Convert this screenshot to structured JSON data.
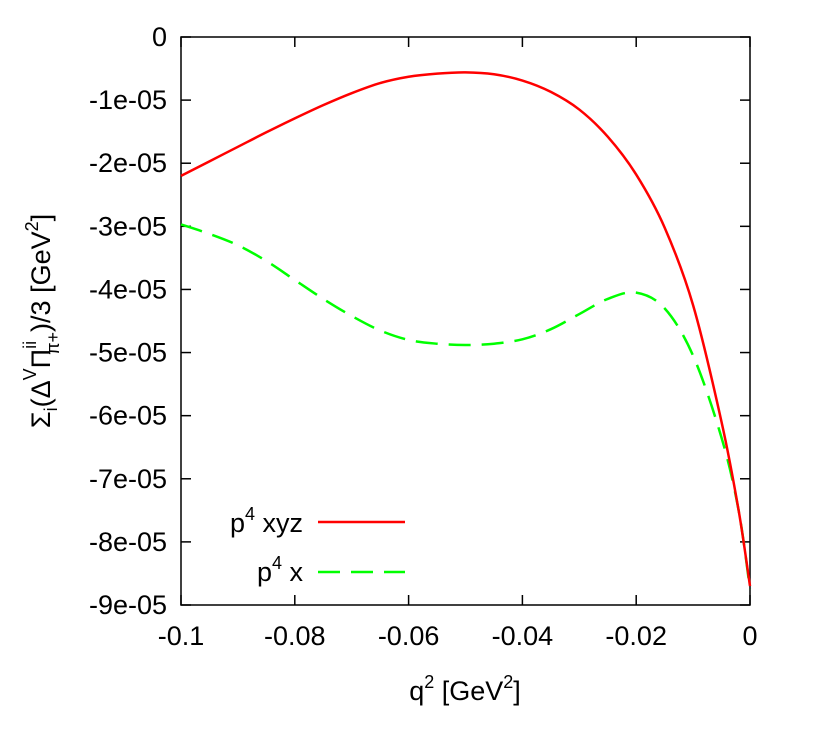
{
  "chart_data": {
    "type": "line",
    "title": "",
    "xlabel": {
      "base": "q",
      "sup": "2",
      "unit_open": " [GeV",
      "unit_sup": "2",
      "unit_close": "]"
    },
    "ylabel": {
      "sigma": "Σ",
      "sub_i": "i",
      "open": "(Δ",
      "sup_v": "V",
      "pi": "Π",
      "sup_ii": "ii",
      "sub_pi": "π+",
      "close": ")/3 [GeV",
      "unit_sup": "2",
      "bracket": "]"
    },
    "xlim": [
      -0.1,
      0
    ],
    "ylim": [
      -9e-05,
      0
    ],
    "xticks": [
      -0.1,
      -0.08,
      -0.06,
      -0.04,
      -0.02,
      0
    ],
    "xtick_labels": [
      "-0.1",
      "-0.08",
      "-0.06",
      "-0.04",
      "-0.02",
      "0"
    ],
    "yticks": [
      0,
      -1e-05,
      -2e-05,
      -3e-05,
      -4e-05,
      -5e-05,
      -6e-05,
      -7e-05,
      -8e-05,
      -9e-05
    ],
    "ytick_labels": [
      "0",
      "-1e-05",
      "-2e-05",
      "-3e-05",
      "-4e-05",
      "-5e-05",
      "-6e-05",
      "-7e-05",
      "-8e-05",
      "-9e-05"
    ],
    "grid": false,
    "legend_position": "bottom-left",
    "series": [
      {
        "name": "p4 xyz",
        "legend": {
          "base": "p",
          "sup": "4",
          "rest": " xyz"
        },
        "color": "#ff0000",
        "style": "solid",
        "x": [
          -0.1,
          -0.095,
          -0.09,
          -0.085,
          -0.08,
          -0.075,
          -0.07,
          -0.065,
          -0.06,
          -0.055,
          -0.05,
          -0.045,
          -0.04,
          -0.035,
          -0.03,
          -0.025,
          -0.02,
          -0.015,
          -0.01,
          -0.005,
          -0.002,
          0
        ],
        "y": [
          -2.2e-05,
          -1.97e-05,
          -1.74e-05,
          -1.51e-05,
          -1.29e-05,
          -1.08e-05,
          -8.9e-06,
          -7.3e-06,
          -6.3e-06,
          -5.8e-06,
          -5.6e-06,
          -5.9e-06,
          -6.9e-06,
          -8.7e-06,
          -1.15e-05,
          -1.58e-05,
          -2.18e-05,
          -3.02e-05,
          -4.25e-05,
          -6.1e-05,
          -7.5e-05,
          -8.7e-05
        ]
      },
      {
        "name": "p4 x",
        "legend": {
          "base": "p",
          "sup": "4",
          "rest": " x"
        },
        "color": "#00ff00",
        "style": "dashed",
        "x": [
          -0.1,
          -0.095,
          -0.09,
          -0.085,
          -0.08,
          -0.075,
          -0.07,
          -0.065,
          -0.06,
          -0.055,
          -0.05,
          -0.045,
          -0.04,
          -0.035,
          -0.03,
          -0.025,
          -0.02,
          -0.015,
          -0.01,
          -0.005,
          -0.002,
          0
        ],
        "y": [
          -2.97e-05,
          -3.12e-05,
          -3.3e-05,
          -3.55e-05,
          -3.85e-05,
          -4.15e-05,
          -4.42e-05,
          -4.65e-05,
          -4.8e-05,
          -4.86e-05,
          -4.88e-05,
          -4.86e-05,
          -4.79e-05,
          -4.63e-05,
          -4.39e-05,
          -4.15e-05,
          -4.05e-05,
          -4.3e-05,
          -5.05e-05,
          -6.35e-05,
          -7.5e-05,
          -8.75e-05
        ]
      }
    ]
  }
}
